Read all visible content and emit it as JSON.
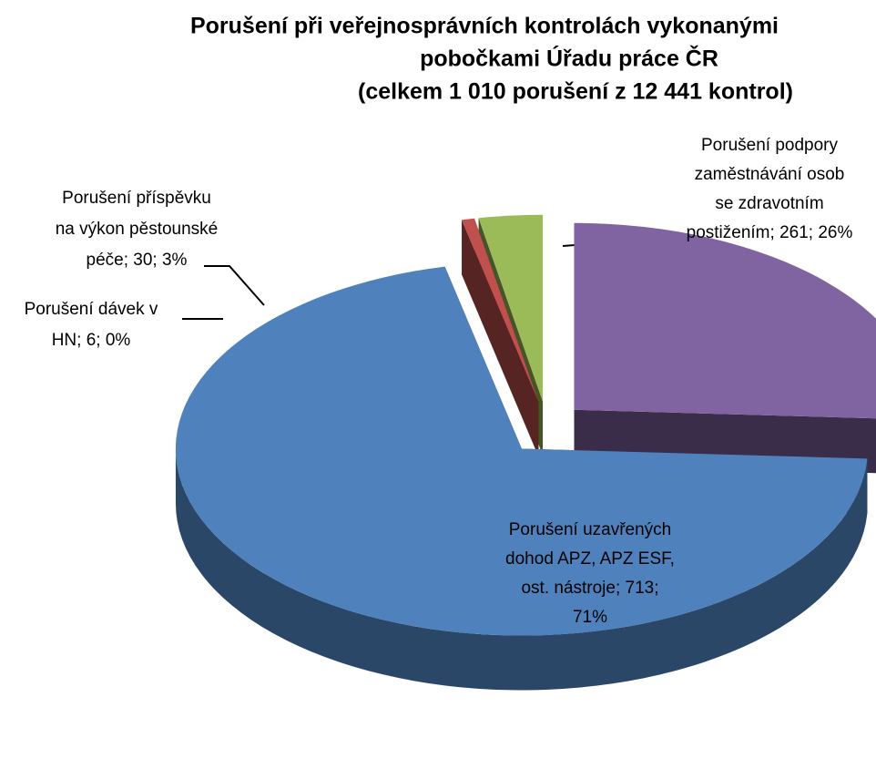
{
  "chart_data": {
    "type": "pie3d",
    "title": [
      "Porušení při veřejnosprávních kontrolách vykonanými",
      "pobočkami Úřadu práce ČR",
      "(celkem 1 010 porušení z 12 441 kontrol)"
    ],
    "values": [
      261,
      713,
      6,
      30
    ],
    "value_labels": [
      [
        "Porušení podpory",
        "zaměstnávání osob",
        "se zdravotním",
        "postižením; 261; 26%"
      ],
      [
        "Porušení uzavřených",
        "dohod APZ, APZ ESF,",
        "ost. nástroje; 713;",
        "71%"
      ],
      [
        "Porušení dávek v",
        "HN; 6; 0%"
      ],
      [
        "Porušení příspěvku",
        "na výkon pěstounské",
        "péče; 30; 3%"
      ]
    ],
    "colors": [
      "#8064a2",
      "#4f81bd",
      "#c0504d",
      "#9bbb59"
    ]
  }
}
